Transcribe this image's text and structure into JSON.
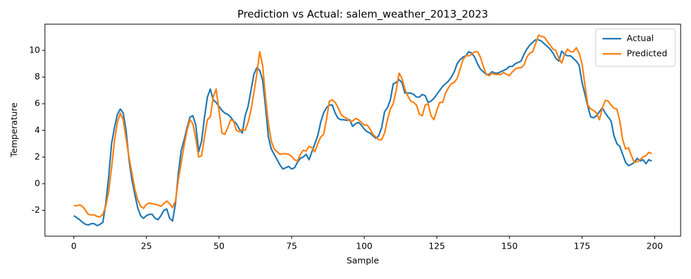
{
  "chart_data": {
    "type": "line",
    "title": "Prediction vs Actual: salem_weather_2013_2023",
    "x_label": "Sample",
    "y_label": "Temperature",
    "x": [
      0,
      1,
      2,
      3,
      4,
      5,
      6,
      7,
      8,
      9,
      10,
      11,
      12,
      13,
      14,
      15,
      16,
      17,
      18,
      19,
      20,
      21,
      22,
      23,
      24,
      25,
      26,
      27,
      28,
      29,
      30,
      31,
      32,
      33,
      34,
      35,
      36,
      37,
      38,
      39,
      40,
      41,
      42,
      43,
      44,
      45,
      46,
      47,
      48,
      49,
      50,
      51,
      52,
      53,
      54,
      55,
      56,
      57,
      58,
      59,
      60,
      61,
      62,
      63,
      64,
      65,
      66,
      67,
      68,
      69,
      70,
      71,
      72,
      73,
      74,
      75,
      76,
      77,
      78,
      79,
      80,
      81,
      82,
      83,
      84,
      85,
      86,
      87,
      88,
      89,
      90,
      91,
      92,
      93,
      94,
      95,
      96,
      97,
      98,
      99,
      100,
      101,
      102,
      103,
      104,
      105,
      106,
      107,
      108,
      109,
      110,
      111,
      112,
      113,
      114,
      115,
      116,
      117,
      118,
      119,
      120,
      121,
      122,
      123,
      124,
      125,
      126,
      127,
      128,
      129,
      130,
      131,
      132,
      133,
      134,
      135,
      136,
      137,
      138,
      139,
      140,
      141,
      142,
      143,
      144,
      145,
      146,
      147,
      148,
      149,
      150,
      151,
      152,
      153,
      154,
      155,
      156,
      157,
      158,
      159,
      160,
      161,
      162,
      163,
      164,
      165,
      166,
      167,
      168,
      169,
      170,
      171,
      172,
      173,
      174,
      175,
      176,
      177,
      178,
      179,
      180,
      181,
      182,
      183,
      184,
      185,
      186,
      187,
      188,
      189,
      190,
      191,
      192,
      193,
      194,
      195,
      196,
      197,
      198,
      199
    ],
    "series": [
      {
        "name": "Actual",
        "color": "#1f77b4",
        "values": [
          -2.4,
          -2.55,
          -2.7,
          -2.9,
          -3.05,
          -3.1,
          -3.0,
          -3.0,
          -3.15,
          -3.05,
          -2.9,
          -1.5,
          0.5,
          3.0,
          4.2,
          5.2,
          5.6,
          5.3,
          4.0,
          1.8,
          0.3,
          -0.8,
          -1.8,
          -2.4,
          -2.6,
          -2.4,
          -2.3,
          -2.3,
          -2.6,
          -2.7,
          -2.4,
          -2.0,
          -1.9,
          -2.6,
          -2.8,
          -1.5,
          0.8,
          2.5,
          3.3,
          4.2,
          5.0,
          5.1,
          4.4,
          2.4,
          3.2,
          5.0,
          6.5,
          7.1,
          6.3,
          6.1,
          5.8,
          5.5,
          5.3,
          5.2,
          5.0,
          4.7,
          4.5,
          4.1,
          3.8,
          5.1,
          5.8,
          7.0,
          8.2,
          8.7,
          8.5,
          7.8,
          5.8,
          3.5,
          2.6,
          2.2,
          1.8,
          1.4,
          1.1,
          1.2,
          1.3,
          1.1,
          1.2,
          1.6,
          1.9,
          2.0,
          2.2,
          1.8,
          2.4,
          3.0,
          3.6,
          4.6,
          5.3,
          5.7,
          5.9,
          5.9,
          5.3,
          4.9,
          4.8,
          4.8,
          4.75,
          4.8,
          4.3,
          4.5,
          4.6,
          4.4,
          4.1,
          3.9,
          3.8,
          3.6,
          3.4,
          3.6,
          4.2,
          5.4,
          5.7,
          6.3,
          7.5,
          7.6,
          7.8,
          7.6,
          6.8,
          6.8,
          6.8,
          6.7,
          6.5,
          6.5,
          6.7,
          6.6,
          6.1,
          6.2,
          6.4,
          6.7,
          7.0,
          7.3,
          7.5,
          7.7,
          8.0,
          8.4,
          9.0,
          9.3,
          9.5,
          9.6,
          9.9,
          9.8,
          9.5,
          9.0,
          8.6,
          8.4,
          8.2,
          8.2,
          8.4,
          8.3,
          8.3,
          8.4,
          8.5,
          8.6,
          8.8,
          8.8,
          9.0,
          9.1,
          9.2,
          9.7,
          10.1,
          10.4,
          10.6,
          10.8,
          10.8,
          10.7,
          10.5,
          10.3,
          10.1,
          9.8,
          9.4,
          9.2,
          9.95,
          9.7,
          9.6,
          9.6,
          9.4,
          9.2,
          8.9,
          7.6,
          6.7,
          5.8,
          5.0,
          4.95,
          5.1,
          5.4,
          5.7,
          5.3,
          5.0,
          4.7,
          3.6,
          3.0,
          2.8,
          2.2,
          1.6,
          1.35,
          1.45,
          1.6,
          1.9,
          1.7,
          1.8,
          1.5,
          1.8,
          1.7
        ]
      },
      {
        "name": "Predicted",
        "color": "#ff7f0e",
        "values": [
          -1.65,
          -1.65,
          -1.6,
          -1.7,
          -2.0,
          -2.3,
          -2.35,
          -2.35,
          -2.45,
          -2.5,
          -2.3,
          -1.7,
          -0.6,
          1.2,
          3.2,
          4.6,
          5.3,
          4.8,
          3.4,
          2.0,
          0.8,
          -0.4,
          -1.2,
          -1.7,
          -1.85,
          -1.55,
          -1.45,
          -1.5,
          -1.55,
          -1.6,
          -1.7,
          -1.5,
          -1.3,
          -1.5,
          -1.8,
          -1.3,
          0.3,
          1.6,
          2.9,
          4.0,
          4.8,
          4.5,
          3.4,
          2.0,
          2.1,
          3.5,
          4.8,
          5.0,
          6.5,
          7.1,
          5.5,
          3.8,
          3.7,
          4.2,
          4.8,
          4.7,
          4.0,
          3.9,
          4.1,
          4.0,
          4.6,
          5.5,
          6.8,
          8.2,
          9.9,
          8.9,
          6.5,
          4.5,
          3.2,
          2.6,
          2.4,
          2.2,
          2.25,
          2.25,
          2.2,
          2.05,
          1.8,
          1.7,
          2.2,
          2.5,
          2.45,
          2.8,
          2.7,
          2.4,
          3.0,
          3.5,
          3.7,
          4.8,
          6.2,
          6.3,
          6.1,
          5.7,
          5.2,
          5.0,
          4.9,
          4.7,
          4.7,
          4.9,
          4.8,
          4.6,
          4.4,
          4.4,
          4.1,
          3.7,
          3.5,
          3.3,
          3.3,
          3.8,
          4.8,
          5.6,
          6.0,
          7.0,
          8.3,
          7.9,
          7.1,
          6.6,
          6.2,
          6.1,
          5.9,
          5.2,
          5.1,
          5.9,
          6.0,
          5.1,
          4.8,
          5.5,
          6.1,
          6.1,
          6.8,
          7.2,
          7.5,
          7.6,
          7.9,
          8.6,
          9.3,
          9.6,
          9.6,
          9.7,
          9.9,
          9.9,
          9.5,
          8.8,
          8.2,
          8.1,
          8.3,
          8.2,
          8.2,
          8.2,
          8.35,
          8.2,
          8.1,
          8.4,
          8.6,
          8.7,
          8.7,
          8.9,
          9.5,
          9.8,
          9.9,
          10.5,
          11.15,
          11.05,
          11.0,
          10.7,
          10.4,
          10.1,
          10.0,
          9.4,
          9.05,
          9.7,
          10.1,
          9.9,
          9.9,
          10.2,
          9.8,
          9.0,
          7.4,
          5.9,
          5.6,
          5.5,
          5.3,
          4.8,
          5.7,
          6.25,
          6.2,
          5.9,
          5.65,
          5.6,
          4.7,
          3.3,
          2.6,
          2.7,
          2.1,
          1.6,
          1.65,
          1.8,
          2.0,
          2.1,
          2.35,
          2.25
        ]
      }
    ],
    "xlim": [
      -9.95,
      208.95
    ],
    "ylim": [
      -3.94,
      11.97
    ],
    "xticks": [
      0,
      25,
      50,
      75,
      100,
      125,
      150,
      175,
      200
    ],
    "yticks": [
      -2,
      0,
      2,
      4,
      6,
      8,
      10
    ],
    "grid": false,
    "legend": "upper-right"
  }
}
